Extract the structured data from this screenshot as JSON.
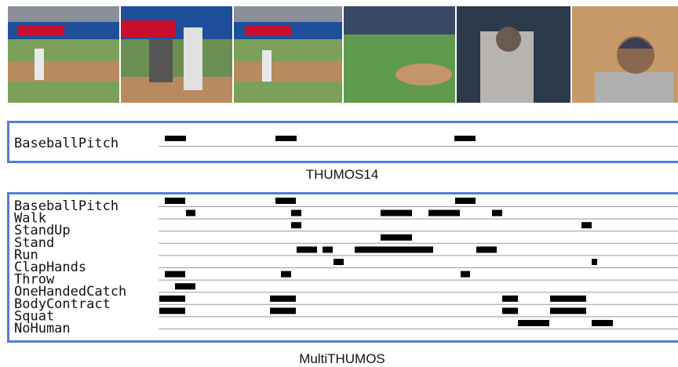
{
  "thumos14": {
    "caption": "THUMOS14",
    "labels": [
      "BaseballPitch"
    ]
  },
  "multithumos": {
    "caption": "MultiTHUMOS",
    "labels": [
      "BaseballPitch",
      "Walk",
      "StandUp",
      "Stand",
      "Run",
      "ClapHands",
      "Throw",
      "OneHandedCatch",
      "BodyContract",
      "Squat",
      "NoHuman"
    ]
  }
}
